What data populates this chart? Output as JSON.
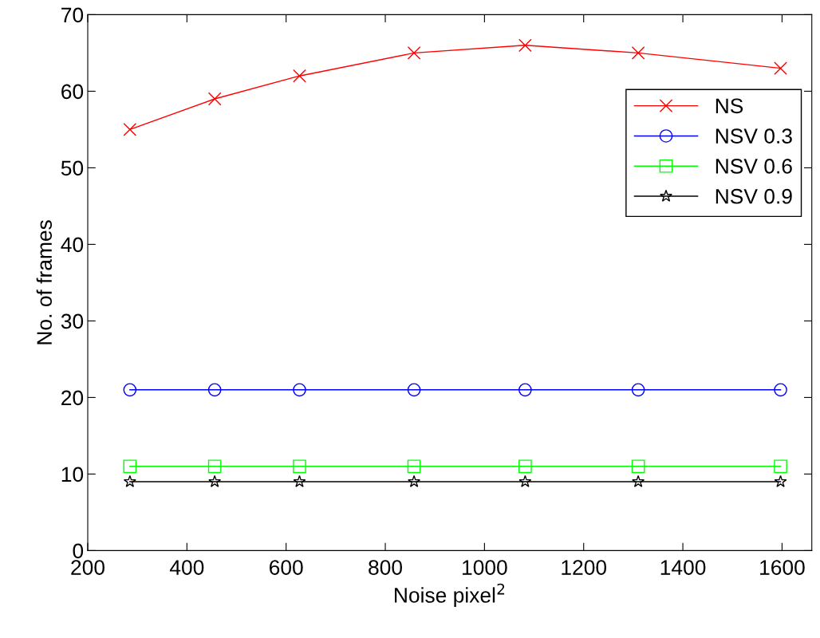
{
  "chart_data": {
    "type": "line",
    "xlabel": "Noise pixel$^{2}$",
    "ylabel": "No. of frames",
    "x": [
      285,
      456,
      627,
      858,
      1082,
      1310,
      1597
    ],
    "series": [
      {
        "name": "NS",
        "color": "#ff0000",
        "marker": "cross",
        "values": [
          55,
          59,
          62,
          65,
          66,
          65,
          63
        ]
      },
      {
        "name": "NSV 0.3",
        "color": "#0000ff",
        "marker": "circle",
        "values": [
          21,
          21,
          21,
          21,
          21,
          21,
          21
        ]
      },
      {
        "name": "NSV 0.6",
        "color": "#00ff00",
        "marker": "square",
        "values": [
          11,
          11,
          11,
          11,
          11,
          11,
          11
        ]
      },
      {
        "name": "NSV 0.9",
        "color": "#000000",
        "marker": "star",
        "values": [
          9,
          9,
          9,
          9,
          9,
          9,
          9
        ]
      }
    ],
    "xlim": [
      200,
      1660
    ],
    "xticks": [
      200,
      400,
      600,
      800,
      1000,
      1200,
      1400,
      1600
    ],
    "ylim": [
      0,
      70
    ],
    "yticks": [
      0,
      10,
      20,
      30,
      40,
      50,
      60,
      70
    ],
    "grid": false,
    "legend": "top right",
    "line_style": "solid"
  }
}
